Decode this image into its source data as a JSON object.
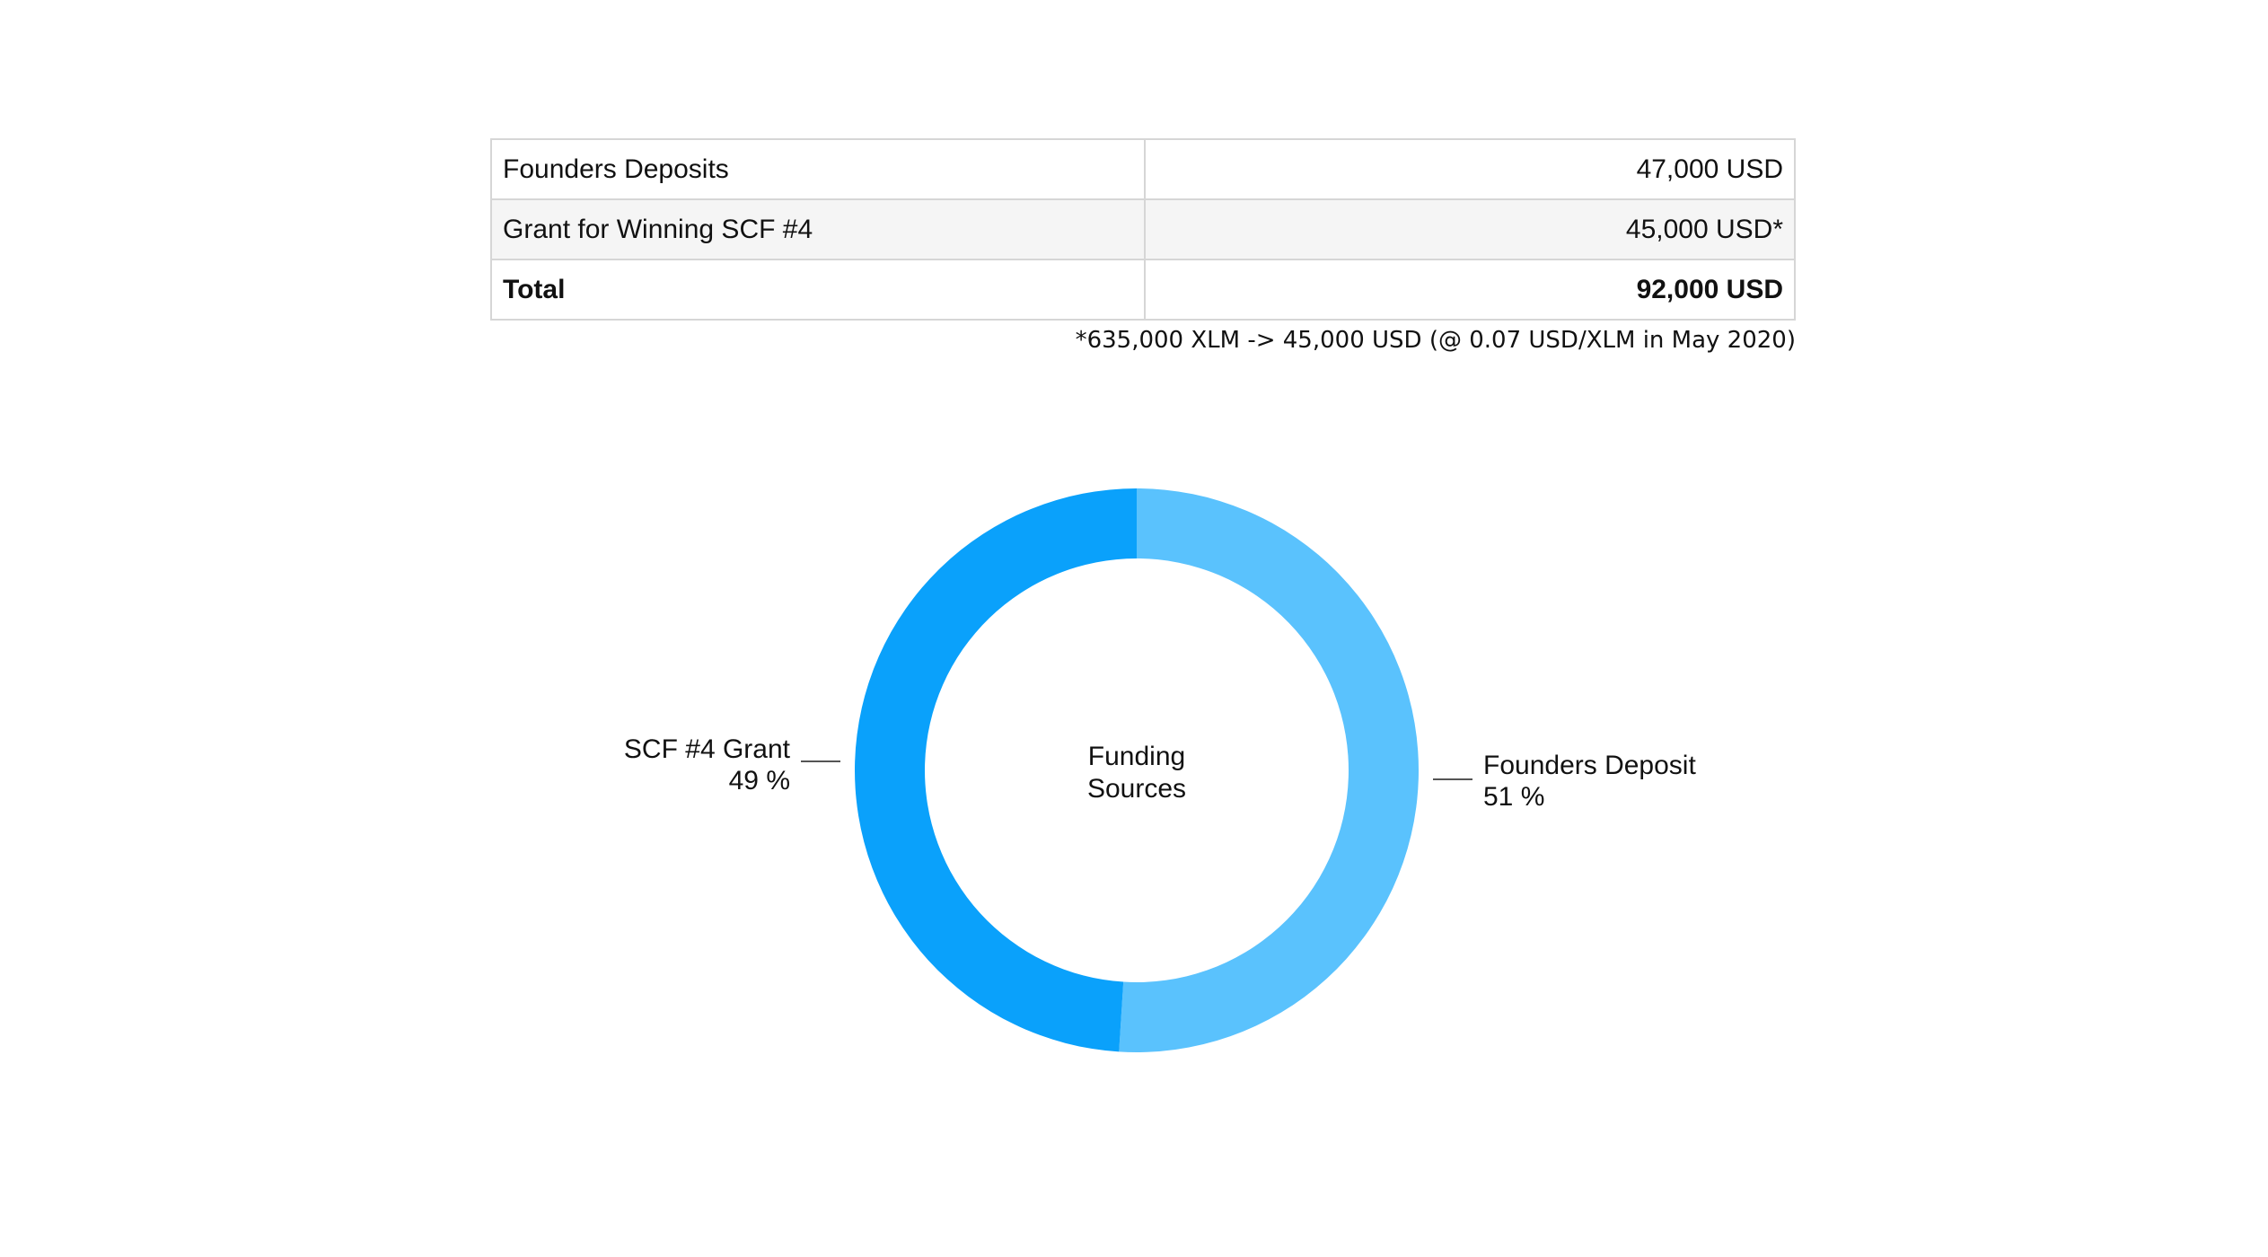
{
  "table": {
    "rows": [
      {
        "label": "Founders Deposits",
        "value": "47,000 USD"
      },
      {
        "label": "Grant for Winning SCF #4",
        "value": "45,000 USD*"
      },
      {
        "label": "Total",
        "value": "92,000 USD"
      }
    ],
    "footnote": "*635,000 XLM -> 45,000 USD (@ 0.07 USD/XLM in May 2020)"
  },
  "chart_data": {
    "type": "pie",
    "title": "Funding Sources",
    "title_lines": [
      "Funding",
      "Sources"
    ],
    "slices": [
      {
        "name": "Founders Deposit",
        "value": 51,
        "value_label": "51 %",
        "color": "#5ac2fd"
      },
      {
        "name": "SCF #4 Grant",
        "value": 49,
        "value_label": "49 %",
        "color": "#0aa1fb"
      }
    ],
    "donut": true,
    "legend": "none"
  }
}
